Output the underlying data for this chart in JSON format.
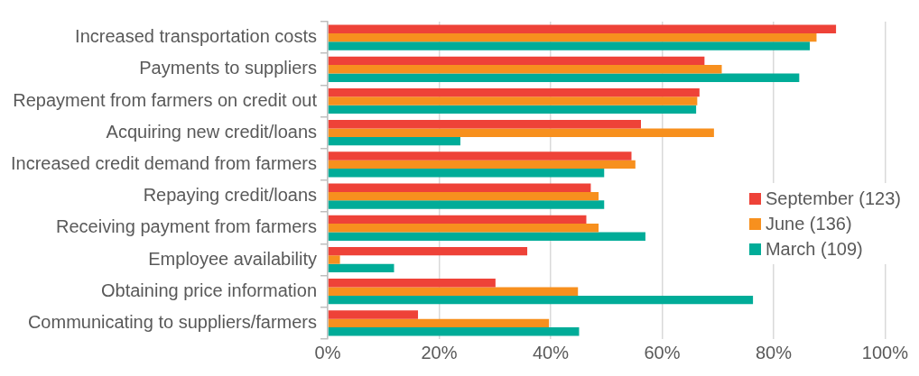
{
  "chart_data": {
    "type": "bar",
    "orientation": "horizontal",
    "categories": [
      "Increased transportation costs",
      "Payments to suppliers",
      "Repayment from farmers on credit out",
      "Acquiring new credit/loans",
      "Increased credit demand from farmers",
      "Repaying credit/loans",
      "Receiving payment from farmers",
      "Employee availability",
      "Obtaining price information",
      "Communicating to suppliers/farmers"
    ],
    "series": [
      {
        "name": "September (123)",
        "color": "#ee4238",
        "values": [
          91.2,
          67.6,
          66.7,
          56.2,
          54.5,
          47.2,
          46.4,
          35.8,
          30.1,
          16.2
        ]
      },
      {
        "name": "June (136)",
        "color": "#f7901e",
        "values": [
          87.7,
          70.7,
          66.3,
          69.3,
          55.2,
          48.6,
          48.6,
          2.2,
          44.9,
          39.7
        ]
      },
      {
        "name": "March (109)",
        "color": "#00ac98",
        "values": [
          86.5,
          84.6,
          66.1,
          23.8,
          49.6,
          49.6,
          57.0,
          11.9,
          76.3,
          45.1
        ]
      }
    ],
    "xlim": [
      0,
      100
    ],
    "xticks": [
      {
        "value": 0,
        "label": "0%"
      },
      {
        "value": 20,
        "label": "20%"
      },
      {
        "value": 40,
        "label": "40%"
      },
      {
        "value": 60,
        "label": "60%"
      },
      {
        "value": 80,
        "label": "80%"
      },
      {
        "value": 100,
        "label": "100%"
      }
    ],
    "grid": "x",
    "legend": "right"
  }
}
